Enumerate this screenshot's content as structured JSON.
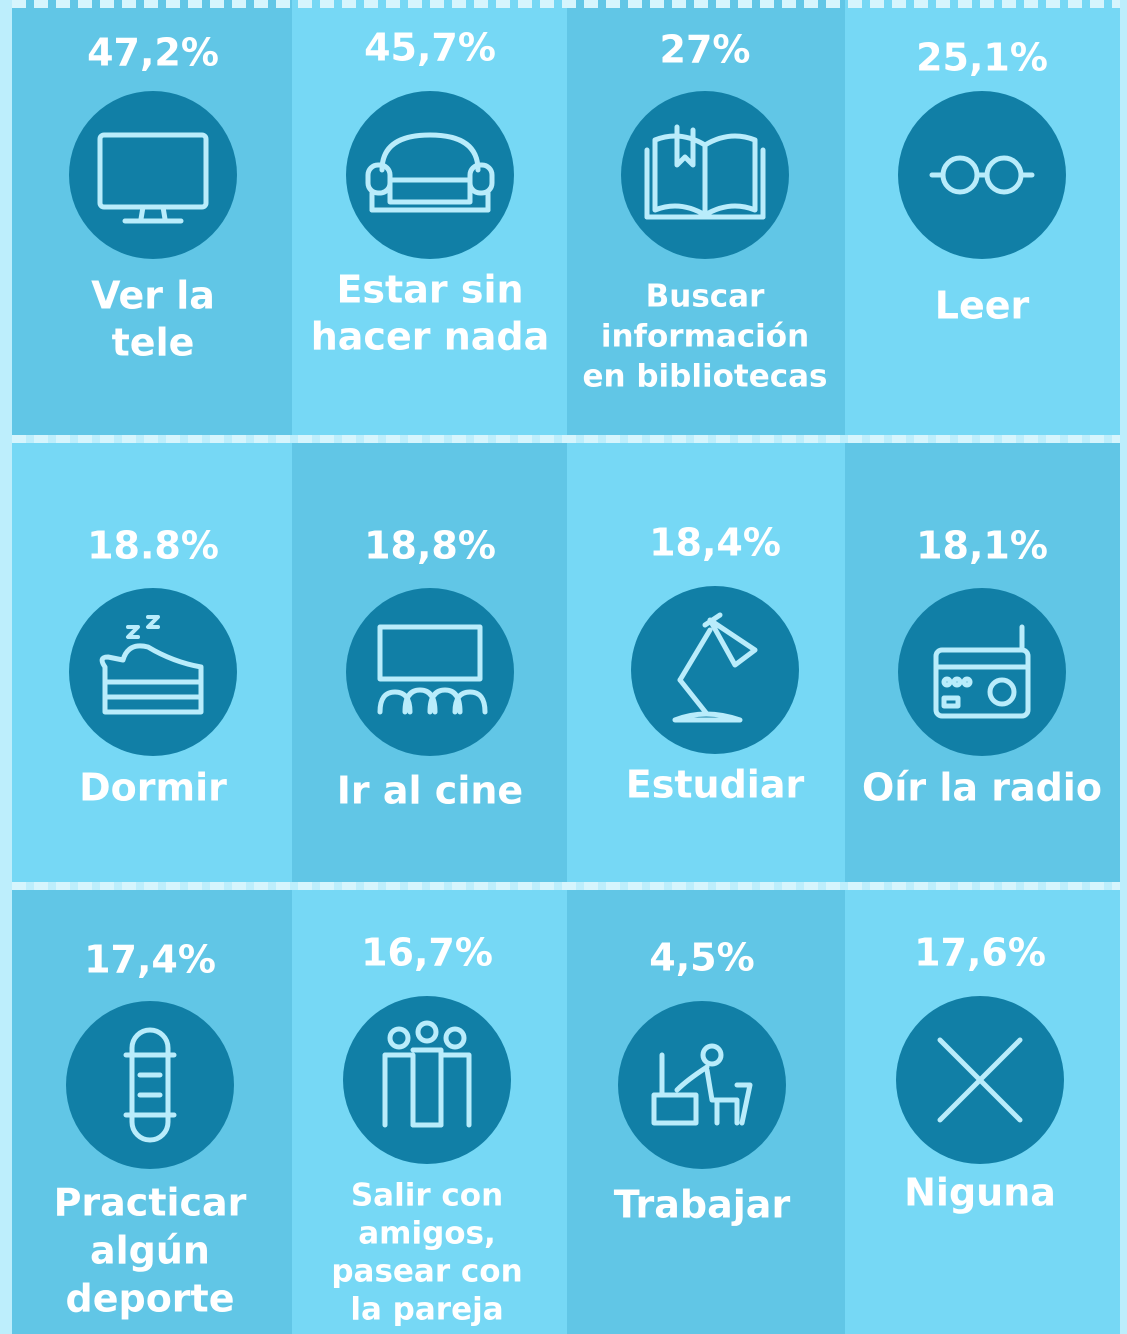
{
  "cells": [
    {
      "value": "47,2%",
      "label": [
        "Ver la",
        "tele"
      ]
    },
    {
      "value": "45,7%",
      "label": [
        "Estar sin",
        "hacer nada"
      ]
    },
    {
      "value": "27%",
      "label": [
        "Buscar",
        "información",
        "en bibliotecas"
      ]
    },
    {
      "value": "25,1%",
      "label": [
        "Leer"
      ]
    },
    {
      "value": "18.8%",
      "label": [
        "Dormir"
      ]
    },
    {
      "value": "18,8%",
      "label": [
        "Ir al cine"
      ]
    },
    {
      "value": "18,4%",
      "label": [
        "Estudiar"
      ]
    },
    {
      "value": "18,1%",
      "label": [
        "Oír la radio"
      ]
    },
    {
      "value": "17,4%",
      "label": [
        "Practicar",
        "algún",
        "deporte"
      ]
    },
    {
      "value": "16,7%",
      "label": [
        "Salir con",
        "amigos,",
        "pasear con",
        "la pareja"
      ]
    },
    {
      "value": "4,5%",
      "label": [
        "Trabajar"
      ]
    },
    {
      "value": "17,6%",
      "label": [
        "Niguna"
      ]
    }
  ]
}
